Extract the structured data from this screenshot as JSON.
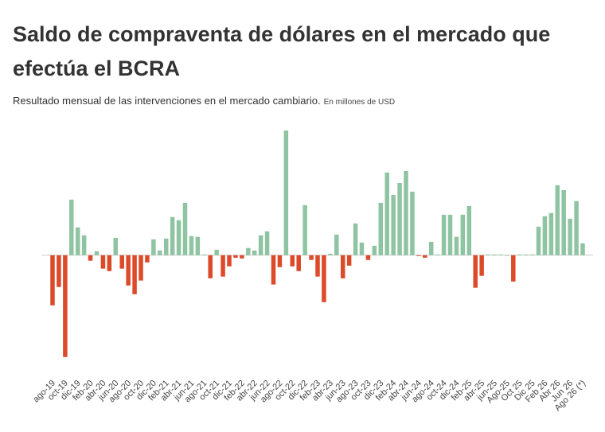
{
  "chart_data": {
    "type": "bar",
    "title_line1": "Saldo de compraventa de dólares en el mercado que",
    "title_line2": "efectúa el BCRA",
    "subtitle": "Resultado mensual de las intervenciones en el mercado cambiario.",
    "unit_note": "En millones de USD",
    "categories": [
      "ago-19",
      null,
      "oct-19",
      null,
      "dic-19",
      null,
      "feb-20",
      null,
      "abr-20",
      null,
      "jun-20",
      null,
      "ago-20",
      null,
      "oct-20",
      null,
      "dic-20",
      null,
      "feb-21",
      null,
      "abr-21",
      null,
      "jun-21",
      null,
      "ago-21",
      null,
      "oct-21",
      null,
      "dic-21",
      null,
      "feb-22",
      null,
      "abr-22",
      null,
      "jun-22",
      null,
      "ago-22",
      null,
      "oct-22",
      null,
      "dic-22",
      null,
      "feb-23",
      null,
      "abr-23",
      null,
      "jun-23",
      null,
      "ago-23",
      null,
      "oct-23",
      null,
      "dic-23",
      null,
      "feb-24",
      null,
      "abr-24",
      null,
      "jun-24",
      null,
      "ago-24",
      null,
      "oct-24",
      null,
      "dic-24",
      null,
      "feb-25",
      null,
      "abr-25",
      null,
      "jun-25",
      null,
      "Ago-25",
      null,
      "Oct 25",
      null,
      "Dic 25",
      null,
      "Feb 26",
      null,
      "Abr 26",
      null,
      "Jun 26",
      null,
      "Ago 26 (*)"
    ],
    "values": [
      -2020,
      -1280,
      -4100,
      2240,
      1120,
      800,
      -220,
      160,
      -540,
      -640,
      700,
      -540,
      -1220,
      -1570,
      -1020,
      -290,
      640,
      190,
      670,
      1540,
      1410,
      2110,
      770,
      740,
      30,
      -930,
      220,
      -860,
      -450,
      -100,
      -130,
      290,
      190,
      800,
      960,
      -1180,
      -480,
      5020,
      -450,
      -640,
      2020,
      -190,
      -860,
      -1890,
      60,
      830,
      -930,
      -420,
      1280,
      510,
      -190,
      380,
      2110,
      3330,
      2430,
      2910,
      3390,
      2560,
      -30,
      -100,
      540,
      30,
      1630,
      1630,
      740,
      1630,
      1980,
      -1310,
      -830,
      30,
      30,
      30,
      0,
      -1060,
      30,
      30,
      30,
      1150,
      1570,
      1700,
      2820,
      2620,
      1470,
      2180,
      480
    ],
    "positive_color": "#8fc4a3",
    "negative_color": "#dc4a2a",
    "ylim": [
      -4300,
      5200
    ]
  }
}
